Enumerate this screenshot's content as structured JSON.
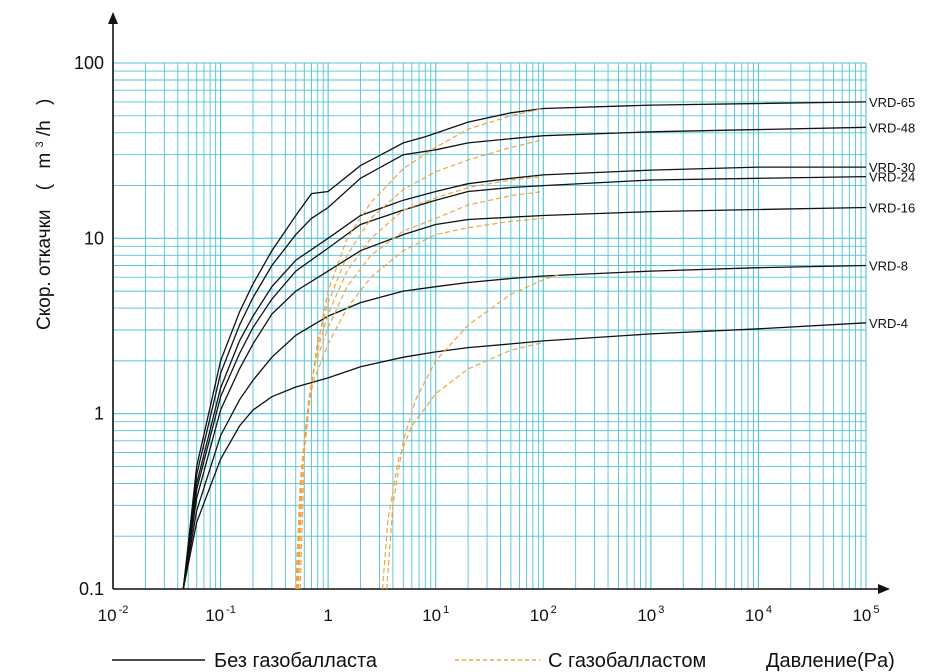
{
  "chart_data": {
    "type": "line",
    "title": "",
    "ylabel": "Скор. откачки",
    "yunit_open": "(",
    "yunit_m": "m",
    "yunit_exp": "3",
    "yunit_h": "/h",
    "yunit_close": ")",
    "xlabel": "Давление(Pa)",
    "xscale": "log",
    "yscale": "log",
    "xlim": [
      0.01,
      100000
    ],
    "ylim": [
      0.1,
      100
    ],
    "grid": true,
    "grid_color": "#4fc3d9",
    "solid_color": "#111111",
    "dashed_color": "#f0a441",
    "x_ticks": [
      {
        "value": 0.01,
        "base": "10",
        "exp": "-2"
      },
      {
        "value": 0.1,
        "base": "10",
        "exp": "-1"
      },
      {
        "value": 1,
        "base": "1",
        "exp": ""
      },
      {
        "value": 10,
        "base": "10",
        "exp": "1"
      },
      {
        "value": 100,
        "base": "10",
        "exp": "2"
      },
      {
        "value": 1000,
        "base": "10",
        "exp": "3"
      },
      {
        "value": 10000,
        "base": "10",
        "exp": "4"
      },
      {
        "value": 100000,
        "base": "10",
        "exp": "5"
      }
    ],
    "y_ticks": [
      {
        "value": 0.1,
        "label": "0.1"
      },
      {
        "value": 1,
        "label": "1"
      },
      {
        "value": 10,
        "label": "10"
      },
      {
        "value": 100,
        "label": "100"
      }
    ],
    "legend": {
      "solid_label": "Без газобалласта",
      "dashed_label": "С газобалластом"
    },
    "series": [
      {
        "name": "VRD-65",
        "style": "solid",
        "points": [
          [
            0.045,
            0.1
          ],
          [
            0.06,
            0.5
          ],
          [
            0.1,
            2
          ],
          [
            0.15,
            3.8
          ],
          [
            0.2,
            5.5
          ],
          [
            0.3,
            8.5
          ],
          [
            0.5,
            13.5
          ],
          [
            0.7,
            18
          ],
          [
            1,
            18.5
          ],
          [
            2,
            26
          ],
          [
            5,
            35
          ],
          [
            8,
            38
          ],
          [
            20,
            46
          ],
          [
            50,
            52
          ],
          [
            100,
            55
          ],
          [
            1000,
            57.5
          ],
          [
            100000,
            60
          ]
        ]
      },
      {
        "name": "VRD-48",
        "style": "solid",
        "points": [
          [
            0.045,
            0.1
          ],
          [
            0.06,
            0.45
          ],
          [
            0.1,
            1.7
          ],
          [
            0.15,
            3.2
          ],
          [
            0.2,
            4.6
          ],
          [
            0.3,
            7
          ],
          [
            0.5,
            10.5
          ],
          [
            0.7,
            13
          ],
          [
            1,
            15
          ],
          [
            2,
            22
          ],
          [
            5,
            30
          ],
          [
            10,
            32
          ],
          [
            20,
            35
          ],
          [
            50,
            37
          ],
          [
            100,
            38.5
          ],
          [
            1000,
            40.5
          ],
          [
            100000,
            43
          ]
        ]
      },
      {
        "name": "VRD-30",
        "style": "solid",
        "points": [
          [
            0.045,
            0.1
          ],
          [
            0.06,
            0.4
          ],
          [
            0.1,
            1.4
          ],
          [
            0.15,
            2.6
          ],
          [
            0.2,
            3.6
          ],
          [
            0.3,
            5.3
          ],
          [
            0.5,
            7.5
          ],
          [
            1,
            10
          ],
          [
            2,
            13.5
          ],
          [
            5,
            16.5
          ],
          [
            10,
            18.5
          ],
          [
            20,
            20.5
          ],
          [
            50,
            22
          ],
          [
            100,
            23
          ],
          [
            1000,
            24.5
          ],
          [
            10000,
            25.5
          ],
          [
            100000,
            25.5
          ]
        ]
      },
      {
        "name": "VRD-24",
        "style": "solid",
        "points": [
          [
            0.045,
            0.1
          ],
          [
            0.06,
            0.37
          ],
          [
            0.1,
            1.25
          ],
          [
            0.15,
            2.2
          ],
          [
            0.2,
            3.1
          ],
          [
            0.3,
            4.5
          ],
          [
            0.5,
            6.5
          ],
          [
            1,
            8.8
          ],
          [
            2,
            12
          ],
          [
            5,
            14.5
          ],
          [
            10,
            16.5
          ],
          [
            20,
            18.5
          ],
          [
            50,
            19.5
          ],
          [
            100,
            20
          ],
          [
            1000,
            21.5
          ],
          [
            10000,
            22
          ],
          [
            100000,
            22.5
          ]
        ]
      },
      {
        "name": "VRD-16",
        "style": "solid",
        "points": [
          [
            0.045,
            0.1
          ],
          [
            0.06,
            0.33
          ],
          [
            0.1,
            1.05
          ],
          [
            0.15,
            1.8
          ],
          [
            0.2,
            2.5
          ],
          [
            0.3,
            3.7
          ],
          [
            0.5,
            5
          ],
          [
            1,
            6.5
          ],
          [
            2,
            8.5
          ],
          [
            5,
            10.5
          ],
          [
            10,
            12
          ],
          [
            20,
            12.8
          ],
          [
            50,
            13.2
          ],
          [
            100,
            13.5
          ],
          [
            1000,
            14.2
          ],
          [
            10000,
            14.6
          ],
          [
            100000,
            15
          ]
        ]
      },
      {
        "name": "VRD-8",
        "style": "solid",
        "points": [
          [
            0.045,
            0.1
          ],
          [
            0.06,
            0.28
          ],
          [
            0.1,
            0.75
          ],
          [
            0.15,
            1.2
          ],
          [
            0.2,
            1.55
          ],
          [
            0.3,
            2.1
          ],
          [
            0.5,
            2.8
          ],
          [
            1,
            3.6
          ],
          [
            2,
            4.3
          ],
          [
            5,
            5
          ],
          [
            10,
            5.3
          ],
          [
            20,
            5.6
          ],
          [
            50,
            5.9
          ],
          [
            100,
            6.1
          ],
          [
            1000,
            6.5
          ],
          [
            10000,
            6.8
          ],
          [
            100000,
            7
          ]
        ]
      },
      {
        "name": "VRD-4",
        "style": "solid",
        "points": [
          [
            0.045,
            0.1
          ],
          [
            0.06,
            0.24
          ],
          [
            0.1,
            0.55
          ],
          [
            0.15,
            0.85
          ],
          [
            0.2,
            1.05
          ],
          [
            0.3,
            1.25
          ],
          [
            0.5,
            1.42
          ],
          [
            1,
            1.6
          ],
          [
            2,
            1.85
          ],
          [
            5,
            2.1
          ],
          [
            10,
            2.25
          ],
          [
            20,
            2.38
          ],
          [
            50,
            2.5
          ],
          [
            100,
            2.6
          ],
          [
            1000,
            2.85
          ],
          [
            10000,
            3.05
          ],
          [
            100000,
            3.3
          ]
        ]
      },
      {
        "name": "",
        "style": "dashed",
        "points": [
          [
            0.55,
            0.1
          ],
          [
            0.6,
            0.6
          ],
          [
            0.7,
            1.5
          ],
          [
            0.85,
            3
          ],
          [
            1,
            5
          ],
          [
            1.5,
            10
          ],
          [
            2.5,
            16
          ],
          [
            5,
            25
          ],
          [
            10,
            33
          ],
          [
            20,
            42
          ],
          [
            50,
            50
          ],
          [
            100,
            55
          ]
        ]
      },
      {
        "name": "",
        "style": "dashed",
        "points": [
          [
            0.53,
            0.1
          ],
          [
            0.58,
            0.55
          ],
          [
            0.68,
            1.3
          ],
          [
            0.8,
            2.6
          ],
          [
            1,
            4.3
          ],
          [
            1.5,
            8
          ],
          [
            2.5,
            13
          ],
          [
            5,
            19
          ],
          [
            10,
            24
          ],
          [
            20,
            28
          ],
          [
            50,
            33
          ],
          [
            100,
            36.5
          ]
        ]
      },
      {
        "name": "",
        "style": "dashed",
        "points": [
          [
            0.52,
            0.1
          ],
          [
            0.57,
            0.5
          ],
          [
            0.66,
            1.2
          ],
          [
            0.78,
            2.2
          ],
          [
            1,
            3.7
          ],
          [
            1.5,
            6.5
          ],
          [
            2.5,
            10
          ],
          [
            5,
            14.5
          ],
          [
            10,
            17
          ],
          [
            20,
            19.5
          ],
          [
            50,
            21.5
          ],
          [
            100,
            22.5
          ]
        ]
      },
      {
        "name": "",
        "style": "dashed",
        "points": [
          [
            0.51,
            0.1
          ],
          [
            0.56,
            0.45
          ],
          [
            0.64,
            1
          ],
          [
            0.75,
            1.9
          ],
          [
            1,
            3.1
          ],
          [
            1.5,
            5.3
          ],
          [
            2.5,
            8
          ],
          [
            5,
            11
          ],
          [
            10,
            13
          ],
          [
            20,
            15.5
          ],
          [
            50,
            17.5
          ],
          [
            100,
            18.5
          ]
        ]
      },
      {
        "name": "",
        "style": "dashed",
        "points": [
          [
            0.5,
            0.1
          ],
          [
            0.55,
            0.4
          ],
          [
            0.62,
            0.85
          ],
          [
            0.72,
            1.5
          ],
          [
            1,
            2.5
          ],
          [
            1.5,
            4
          ],
          [
            2.5,
            6
          ],
          [
            5,
            8.5
          ],
          [
            10,
            10.5
          ],
          [
            20,
            11.5
          ],
          [
            50,
            12.5
          ],
          [
            100,
            13
          ]
        ]
      },
      {
        "name": "",
        "style": "dashed",
        "points": [
          [
            3.5,
            0.1
          ],
          [
            4,
            0.3
          ],
          [
            5,
            0.7
          ],
          [
            6.5,
            1.2
          ],
          [
            10,
            2
          ],
          [
            20,
            3.2
          ],
          [
            50,
            4.8
          ],
          [
            100,
            5.8
          ],
          [
            150,
            6.3
          ]
        ]
      },
      {
        "name": "",
        "style": "dashed",
        "points": [
          [
            3.2,
            0.1
          ],
          [
            3.6,
            0.25
          ],
          [
            4.5,
            0.55
          ],
          [
            6,
            0.85
          ],
          [
            10,
            1.3
          ],
          [
            20,
            1.8
          ],
          [
            50,
            2.3
          ],
          [
            100,
            2.55
          ]
        ]
      }
    ]
  }
}
